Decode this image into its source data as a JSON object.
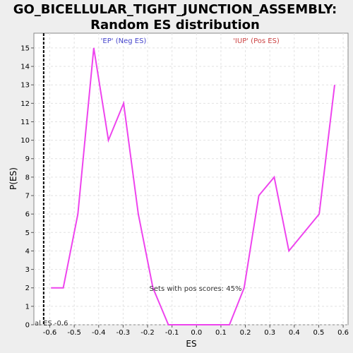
{
  "chart_data": {
    "type": "line",
    "title_line1": "GO_BICELLULAR_TIGHT_JUNCTION_ASSEMBLY:",
    "title_line2": "Random ES distribution",
    "xlabel": "ES",
    "ylabel": "P(ES)",
    "xlim": [
      -0.665,
      0.62
    ],
    "ylim": [
      0,
      15.8
    ],
    "xticks": [
      "-0.6",
      "-0.5",
      "-0.4",
      "-0.3",
      "-0.2",
      "-0.1",
      "0.0",
      "0.1",
      "0.2",
      "0.3",
      "0.4",
      "0.5",
      "0.6"
    ],
    "yticks": [
      "0",
      "1",
      "2",
      "3",
      "4",
      "5",
      "6",
      "7",
      "8",
      "9",
      "10",
      "11",
      "12",
      "13",
      "14",
      "15"
    ],
    "grid": true,
    "line_color": "#ee44ee",
    "series": [
      {
        "x": [
          -0.595,
          -0.545,
          -0.485,
          -0.42,
          -0.36,
          -0.298,
          -0.238,
          -0.178,
          -0.115,
          0.135,
          0.195,
          0.255,
          0.318,
          0.378,
          0.502,
          0.565
        ],
        "y": [
          2,
          2,
          6,
          15,
          10,
          12,
          6,
          2,
          0,
          0,
          2,
          7,
          8,
          4,
          6,
          13
        ]
      }
    ],
    "marker_line": {
      "x": -0.625,
      "label": "al ES -0.6",
      "color": "#000000"
    },
    "annotations": {
      "neg_label": "'EP' (Neg ES)",
      "neg_color": "#4444cc",
      "pos_label": "'IUP' (Pos ES)",
      "pos_color": "#cc4444",
      "pos_scores": "Sets with pos scores: 45%"
    }
  }
}
